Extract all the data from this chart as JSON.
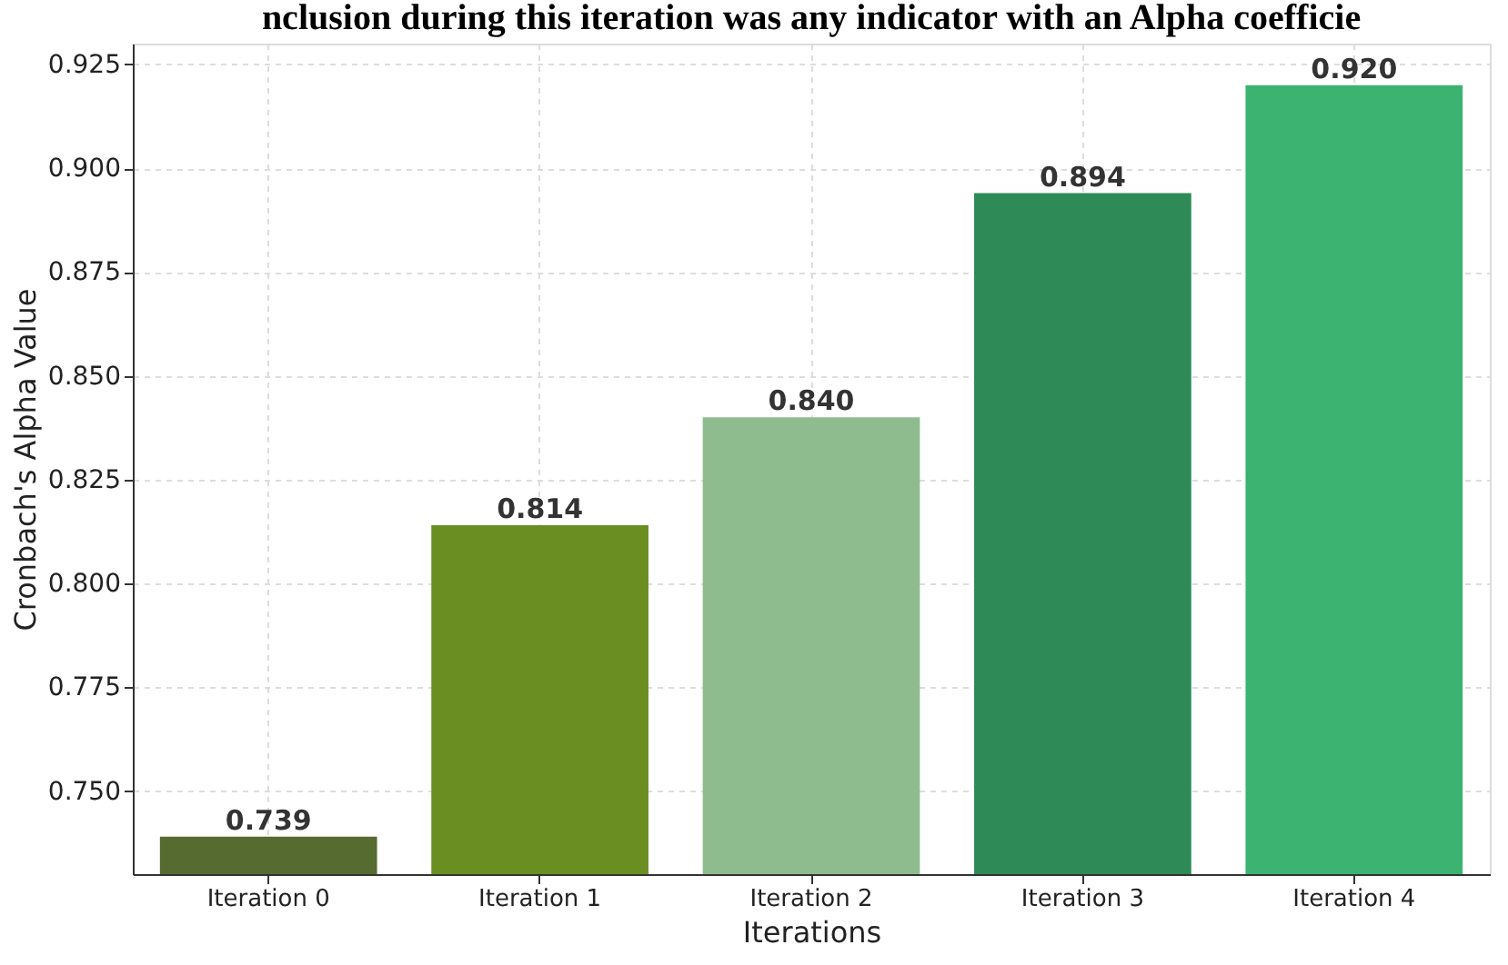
{
  "chart_data": {
    "type": "bar",
    "title": "nclusion during this iteration was any indicator with an Alpha coefficie",
    "xlabel": "Iterations",
    "ylabel": "Cronbach's Alpha Value",
    "categories": [
      "Iteration 0",
      "Iteration 1",
      "Iteration 2",
      "Iteration 3",
      "Iteration 4"
    ],
    "values": [
      0.739,
      0.814,
      0.84,
      0.894,
      0.92
    ],
    "value_labels": [
      "0.739",
      "0.814",
      "0.840",
      "0.894",
      "0.920"
    ],
    "colors": [
      "#556b2f",
      "#6b8e23",
      "#8fbc8f",
      "#2e8b57",
      "#3cb371"
    ],
    "ylim": [
      0.73,
      0.93
    ],
    "yticks": [
      {
        "value": 0.75,
        "label": "0.750"
      },
      0.775,
      {
        "value": 0.8,
        "label": "0.800"
      },
      0.825,
      {
        "value": 0.85,
        "label": "0.850"
      },
      0.875,
      {
        "value": 0.9,
        "label": "0.900"
      },
      0.925
    ],
    "grid": true
  }
}
